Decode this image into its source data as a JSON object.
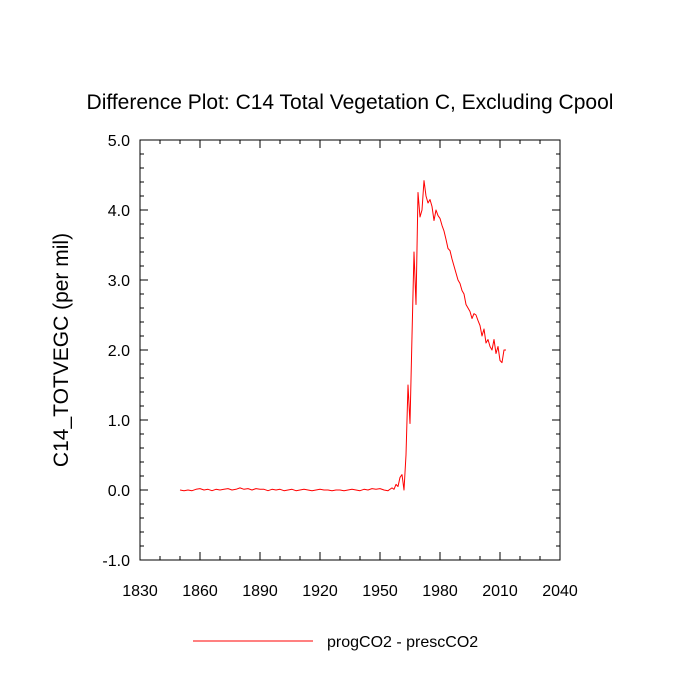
{
  "chart_data": {
    "type": "line",
    "title": "Difference Plot: C14 Total Vegetation C, Excluding Cpool",
    "xlabel": "",
    "ylabel": "C14_TOTVEGC  (per mil)",
    "xlim": [
      1830,
      2040
    ],
    "ylim": [
      -1.0,
      5.0
    ],
    "xticks": [
      1830,
      1860,
      1890,
      1920,
      1950,
      1980,
      2010,
      2040
    ],
    "xtick_labels": [
      "1830",
      "1860",
      "1890",
      "1920",
      "1950",
      "1980",
      "2010",
      "2040"
    ],
    "yticks": [
      -1.0,
      0.0,
      1.0,
      2.0,
      3.0,
      4.0,
      5.0
    ],
    "ytick_labels": [
      "-1.0",
      "0.0",
      "1.0",
      "2.0",
      "3.0",
      "4.0",
      "5.0"
    ],
    "grid": false,
    "legend": {
      "position": "bottom",
      "entries": [
        "progCO2 - prescCO2"
      ]
    },
    "series": [
      {
        "name": "progCO2 - prescCO2",
        "color": "#ff0000",
        "x": [
          1850,
          1852,
          1854,
          1856,
          1858,
          1860,
          1862,
          1864,
          1866,
          1868,
          1870,
          1872,
          1874,
          1876,
          1878,
          1880,
          1882,
          1884,
          1886,
          1888,
          1890,
          1892,
          1894,
          1896,
          1898,
          1900,
          1902,
          1904,
          1906,
          1908,
          1910,
          1912,
          1914,
          1916,
          1918,
          1920,
          1922,
          1924,
          1926,
          1928,
          1930,
          1932,
          1934,
          1936,
          1938,
          1940,
          1942,
          1944,
          1946,
          1948,
          1950,
          1952,
          1954,
          1956,
          1957,
          1958,
          1959,
          1960,
          1961,
          1962,
          1963,
          1964,
          1965,
          1966,
          1967,
          1968,
          1969,
          1970,
          1971,
          1972,
          1973,
          1974,
          1975,
          1976,
          1977,
          1978,
          1979,
          1980,
          1981,
          1982,
          1983,
          1984,
          1985,
          1986,
          1987,
          1988,
          1989,
          1990,
          1991,
          1992,
          1993,
          1994,
          1995,
          1996,
          1997,
          1998,
          1999,
          2000,
          2001,
          2002,
          2003,
          2004,
          2005,
          2006,
          2007,
          2008,
          2009,
          2010,
          2011,
          2012,
          2013
        ],
        "values": [
          0.0,
          -0.01,
          0.0,
          -0.01,
          0.01,
          0.02,
          0.0,
          0.01,
          -0.01,
          0.01,
          0.0,
          0.01,
          0.02,
          0.0,
          0.01,
          0.03,
          0.01,
          0.02,
          0.0,
          0.02,
          0.01,
          0.01,
          -0.01,
          0.01,
          0.0,
          0.01,
          -0.01,
          0.0,
          0.01,
          -0.01,
          0.0,
          0.01,
          0.0,
          -0.01,
          0.0,
          0.01,
          0.0,
          0.0,
          -0.01,
          0.0,
          0.0,
          -0.01,
          0.0,
          0.01,
          0.0,
          -0.01,
          0.01,
          0.0,
          0.02,
          0.01,
          0.02,
          0.0,
          -0.01,
          0.03,
          0.01,
          0.08,
          0.05,
          0.18,
          0.22,
          0.0,
          0.5,
          1.5,
          0.95,
          2.2,
          3.4,
          2.65,
          4.25,
          3.9,
          4.0,
          4.42,
          4.2,
          4.1,
          4.15,
          4.05,
          3.85,
          4.0,
          3.92,
          3.88,
          3.78,
          3.7,
          3.58,
          3.45,
          3.42,
          3.3,
          3.2,
          3.1,
          3.0,
          2.95,
          2.85,
          2.8,
          2.65,
          2.6,
          2.55,
          2.45,
          2.52,
          2.5,
          2.42,
          2.35,
          2.2,
          2.3,
          2.1,
          2.15,
          2.05,
          2.0,
          2.15,
          1.95,
          2.05,
          1.85,
          1.82,
          2.0,
          2.0
        ]
      }
    ]
  }
}
